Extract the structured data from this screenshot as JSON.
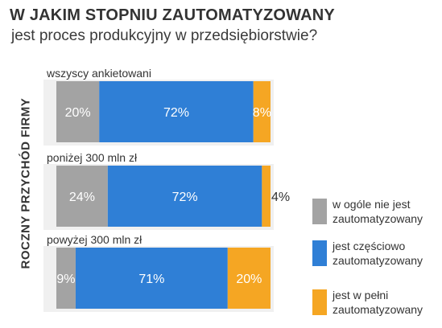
{
  "chart_data": {
    "type": "bar",
    "orientation": "horizontal",
    "stacked": true,
    "title": "W JAKIM STOPNIU ZAUTOMATYZOWANY",
    "subtitle": "jest proces produkcyjny w przedsiębiorstwie?",
    "ylabel": "ROCZNY PRZYCHÓD FIRMY",
    "categories": [
      "wszyscy ankietowani",
      "poniżej 300 mln zł",
      "powyżej 300 mln zł"
    ],
    "series": [
      {
        "name": "w ogóle nie jest zautomatyzowany",
        "color": "#a3a3a3",
        "values": [
          20,
          24,
          9
        ],
        "labels": [
          "20%",
          "24%",
          "9%"
        ]
      },
      {
        "name": "jest częściowo zautomatyzowany",
        "color": "#2f7fd6",
        "values": [
          72,
          72,
          71
        ],
        "labels": [
          "72%",
          "72%",
          "71%"
        ]
      },
      {
        "name": "jest w pełni zautomatyzowany",
        "color": "#f5a623",
        "values": [
          8,
          4,
          20
        ],
        "labels": [
          "8%",
          "4%",
          "20%"
        ]
      }
    ],
    "xlim": [
      0,
      100
    ],
    "legend": "right",
    "grid": false
  }
}
